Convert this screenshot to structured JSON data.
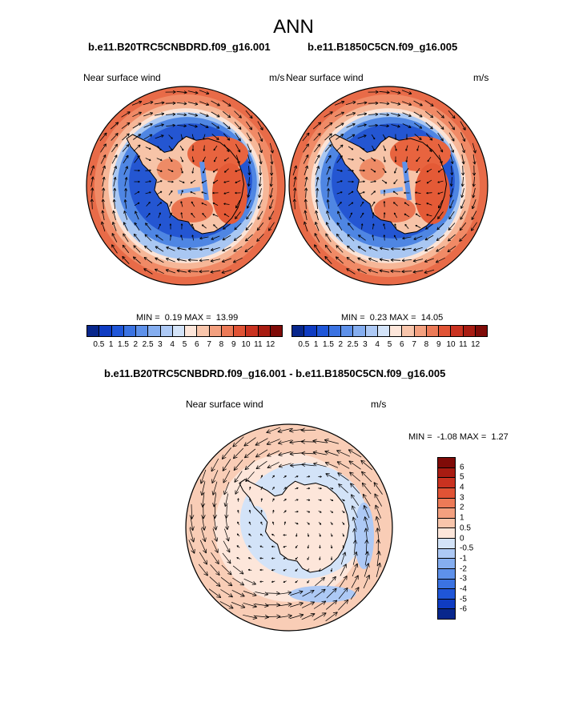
{
  "title": "ANN",
  "case_a": "b.e11.B20TRC5CNBDRD.f09_g16.001",
  "case_b": "b.e11.B1850C5CN.f09_g16.005",
  "diff_title": "b.e11.B20TRC5CNBDRD.f09_g16.001 - b.e11.B1850C5CN.f09_g16.005",
  "panels": [
    {
      "left_label": "Near surface wind",
      "units": "m/s",
      "min": "0.19",
      "max": "13.99"
    },
    {
      "left_label": "Near surface wind",
      "units": "m/s",
      "min": "0.23",
      "max": "14.05"
    },
    {
      "left_label": "Near surface wind",
      "units": "m/s",
      "min": "-1.08",
      "max": "1.27"
    }
  ],
  "minmax": {
    "min_label": "MIN =",
    "max_label": "MAX ="
  },
  "abs_colorbar": {
    "labels": [
      "0.5",
      "1",
      "1.5",
      "2",
      "2.5",
      "3",
      "4",
      "5",
      "6",
      "7",
      "8",
      "9",
      "10",
      "11",
      "12"
    ],
    "colors": [
      "#08278c",
      "#0f3cc2",
      "#1f56d8",
      "#3b73e2",
      "#5e91ea",
      "#85aef0",
      "#adc9f5",
      "#d3e3f8",
      "#fde6da",
      "#f8c5ab",
      "#f3a07f",
      "#ec7a57",
      "#e05335",
      "#c93220",
      "#a81c12",
      "#7f0b08"
    ]
  },
  "diff_colorbar": {
    "labels": [
      "6",
      "5",
      "4",
      "3",
      "2",
      "1",
      "0.5",
      "0",
      "-0.5",
      "-1",
      "-2",
      "-3",
      "-4",
      "-5",
      "-6"
    ],
    "colors": [
      "#7f0b08",
      "#a81c12",
      "#c93220",
      "#e05335",
      "#ec7a57",
      "#f3a07f",
      "#f8c5ab",
      "#fde6da",
      "#d3e3f8",
      "#adc9f5",
      "#85aef0",
      "#5e91ea",
      "#3b73e2",
      "#1f56d8",
      "#0f3cc2",
      "#08278c"
    ]
  }
}
